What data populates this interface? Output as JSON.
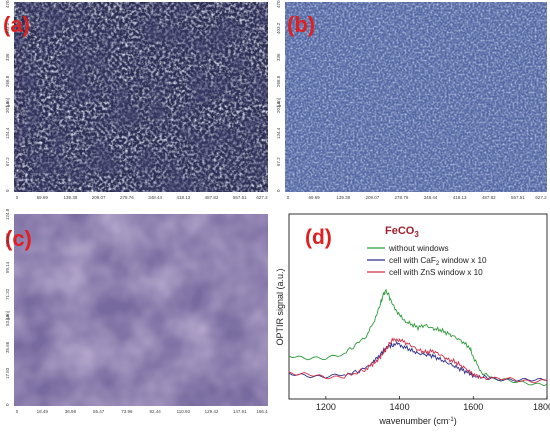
{
  "panels": {
    "a": {
      "label": "(a)",
      "y_unit": "[μm]",
      "y_ticks": [
        "0",
        "67.2",
        "134.4",
        "201.6",
        "268.8",
        "336",
        "403.2",
        "470.4"
      ],
      "x_ticks": [
        "0",
        "69.69",
        "139.38",
        "209.07",
        "278.76",
        "348.44",
        "418.13",
        "487.82",
        "557.51",
        "627.2"
      ]
    },
    "b": {
      "label": "(b)",
      "y_unit": "[μm]",
      "y_ticks": [
        "0",
        "67.2",
        "134.4",
        "201.6",
        "268.8",
        "336",
        "403.2",
        "470.4"
      ],
      "x_ticks": [
        "0",
        "69.69",
        "139.38",
        "209.07",
        "278.76",
        "348.44",
        "418.13",
        "487.82",
        "557.51",
        "627.2"
      ]
    },
    "c": {
      "label": "(c)",
      "y_unit": "[μm]",
      "y_ticks": [
        "0",
        "17.83",
        "35.66",
        "53.49",
        "71.32",
        "89.14",
        "106.97",
        "124.8"
      ],
      "x_ticks": [
        "0",
        "18.49",
        "36.98",
        "55.47",
        "73.96",
        "92.44",
        "110.93",
        "129.42",
        "147.91",
        "166.4"
      ]
    },
    "d": {
      "label": "(d)"
    }
  },
  "chart_data": {
    "type": "line",
    "title": "FeCO",
    "title_subscript": "3",
    "xlabel": "wavenumber (cm",
    "xlabel_sup": "-1",
    "xlabel_end": ")",
    "ylabel": "OPTIR signal (a.u.)",
    "xlim": [
      1100,
      1800
    ],
    "x_ticks": [
      1200,
      1400,
      1600,
      1800
    ],
    "ylim": [
      0,
      1
    ],
    "legend": {
      "position": "top-left",
      "entries": [
        {
          "text": "without windows",
          "color": "#2e9b3a"
        },
        {
          "text": "cell with CaF",
          "sub": "2",
          "text_end": " window x 10",
          "color": "#2c2f8a"
        },
        {
          "text": "cell with ZnS window x 10",
          "color": "#d0304a"
        }
      ]
    },
    "x": [
      1100,
      1150,
      1200,
      1250,
      1280,
      1310,
      1330,
      1345,
      1355,
      1362,
      1370,
      1380,
      1395,
      1410,
      1430,
      1450,
      1470,
      1490,
      1510,
      1530,
      1550,
      1570,
      1590,
      1600,
      1620,
      1650,
      1700,
      1750,
      1800
    ],
    "series": [
      {
        "color": "#2e9b3a",
        "values": [
          0.3,
          0.27,
          0.26,
          0.31,
          0.38,
          0.46,
          0.58,
          0.7,
          0.8,
          0.84,
          0.81,
          0.73,
          0.66,
          0.59,
          0.56,
          0.53,
          0.55,
          0.52,
          0.51,
          0.48,
          0.45,
          0.41,
          0.36,
          0.28,
          0.16,
          0.1,
          0.07,
          0.06,
          0.05
        ]
      },
      {
        "color": "#2c2f8a",
        "values": [
          0.13,
          0.12,
          0.12,
          0.13,
          0.15,
          0.19,
          0.24,
          0.29,
          0.33,
          0.35,
          0.37,
          0.38,
          0.39,
          0.37,
          0.34,
          0.31,
          0.3,
          0.29,
          0.26,
          0.23,
          0.2,
          0.17,
          0.14,
          0.12,
          0.11,
          0.1,
          0.09,
          0.08,
          0.08
        ]
      },
      {
        "color": "#d0304a",
        "values": [
          0.15,
          0.13,
          0.1,
          0.12,
          0.14,
          0.18,
          0.23,
          0.27,
          0.31,
          0.34,
          0.38,
          0.42,
          0.43,
          0.41,
          0.38,
          0.34,
          0.32,
          0.33,
          0.3,
          0.26,
          0.24,
          0.2,
          0.16,
          0.13,
          0.11,
          0.09,
          0.09,
          0.08,
          0.08
        ]
      }
    ]
  },
  "colors": {
    "panel_a_base": "#2a2c52",
    "panel_b_base": "#5a6ea8",
    "panel_c_base": "#7a6a9e",
    "label_red": "#e02020"
  }
}
